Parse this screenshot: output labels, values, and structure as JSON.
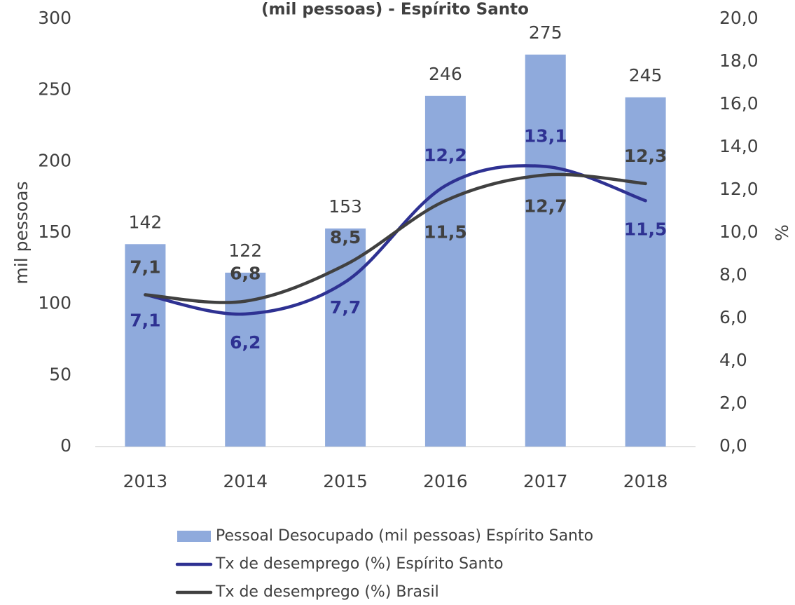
{
  "chart_data": {
    "type": "bar",
    "title": "(mil pessoas) - Espírito Santo",
    "ylabel": "mil pessoas",
    "y2label": "%",
    "categories": [
      "2013",
      "2014",
      "2015",
      "2016",
      "2017",
      "2018"
    ],
    "series": [
      {
        "name": "Pessoal Desocupado (mil pessoas) Espírito Santo",
        "type": "bar",
        "color": "#8faadc",
        "values": [
          142,
          122,
          153,
          246,
          275,
          245
        ]
      },
      {
        "name": "Tx de desemprego (%) Espírito Santo",
        "type": "line",
        "axis": "y2",
        "color": "#2e3192",
        "values": [
          7.1,
          6.2,
          7.7,
          12.2,
          13.1,
          11.5
        ],
        "value_labels": [
          "7,1",
          "6,2",
          "7,7",
          "12,2",
          "13,1",
          "11,5"
        ]
      },
      {
        "name": "Tx de desemprego (%) Brasil",
        "type": "line",
        "axis": "y2",
        "color": "#404040",
        "values": [
          7.1,
          6.8,
          8.5,
          11.5,
          12.7,
          12.3
        ],
        "value_labels": [
          "7,1",
          "6,8",
          "8,5",
          "11,5",
          "12,7",
          "12,3"
        ]
      }
    ],
    "ylim": [
      0,
      300
    ],
    "yticks": [
      0,
      50,
      100,
      150,
      200,
      250,
      300
    ],
    "y2lim": [
      0,
      20
    ],
    "y2ticks": [
      {
        "value": 0,
        "label": "0,0"
      },
      {
        "value": 2,
        "label": "2,0"
      },
      {
        "value": 4,
        "label": "4,0"
      },
      {
        "value": 6,
        "label": "6,0"
      },
      {
        "value": 8,
        "label": "8,0"
      },
      {
        "value": 10,
        "label": "10,0"
      },
      {
        "value": 12,
        "label": "12,0"
      },
      {
        "value": 14,
        "label": "14,0"
      },
      {
        "value": 16,
        "label": "16,0"
      },
      {
        "value": 18,
        "label": "18,0"
      },
      {
        "value": 20,
        "label": "20,0"
      }
    ],
    "grid": false,
    "legend": "bottom"
  }
}
